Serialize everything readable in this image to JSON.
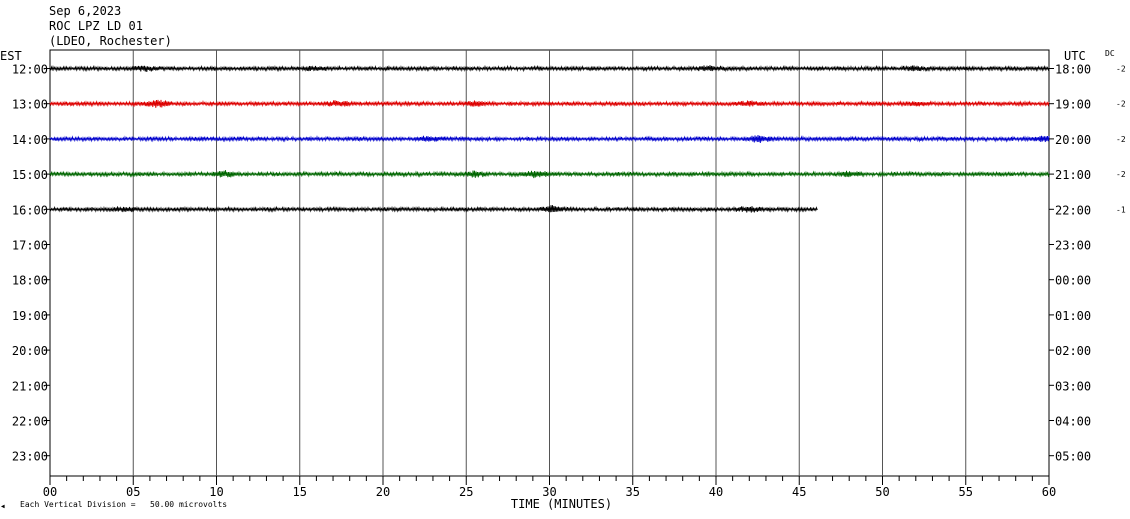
{
  "header": {
    "date": "Sep 6,2023",
    "station": "ROC LPZ LD 01",
    "network": "(LDEO, Rochester)"
  },
  "left_axis_title": "EST",
  "right_axis_title": "UTC",
  "dc_label": "DC",
  "footer": {
    "mark": "◀",
    "scale_note": "Each Vertical Division =   50.00 microvolts"
  },
  "chart_data": {
    "type": "line",
    "title": "ROC LPZ LD 01",
    "xlabel": "TIME (MINUTES)",
    "ylabel": "",
    "x_ticks": [
      "00",
      "05",
      "10",
      "15",
      "20",
      "25",
      "30",
      "35",
      "40",
      "45",
      "50",
      "55",
      "60"
    ],
    "xlim": [
      0,
      60
    ],
    "grid": true,
    "est_hours": [
      "12:00",
      "13:00",
      "14:00",
      "15:00",
      "16:00",
      "17:00",
      "18:00",
      "19:00",
      "20:00",
      "21:00",
      "22:00",
      "23:00"
    ],
    "utc_hours": [
      "18:00",
      "19:00",
      "20:00",
      "21:00",
      "22:00",
      "23:00",
      "00:00",
      "01:00",
      "02:00",
      "03:00",
      "04:00",
      "05:00"
    ],
    "series": [
      {
        "est": "12:00",
        "color": "#000000",
        "end_minute": 60,
        "dc": "-2",
        "bursts": [
          [
            5.8,
            1.6
          ],
          [
            16,
            1.3
          ],
          [
            39.6,
            1.8
          ],
          [
            52,
            1.4
          ]
        ]
      },
      {
        "est": "13:00",
        "color": "#dd0000",
        "end_minute": 60,
        "dc": "-2",
        "bursts": [
          [
            6.4,
            3.0
          ],
          [
            17.3,
            1.7
          ],
          [
            25.6,
            1.9
          ],
          [
            42,
            1.5
          ],
          [
            52,
            1.3
          ]
        ]
      },
      {
        "est": "14:00",
        "color": "#0000cc",
        "end_minute": 60,
        "dc": "-2",
        "bursts": [
          [
            22.8,
            1.6
          ],
          [
            42.6,
            2.4
          ],
          [
            59.6,
            1.6
          ]
        ]
      },
      {
        "est": "15:00",
        "color": "#006600",
        "end_minute": 60,
        "dc": "-2",
        "bursts": [
          [
            10.5,
            2.2
          ],
          [
            25.5,
            2.0
          ],
          [
            29.2,
            2.2
          ],
          [
            48,
            1.6
          ]
        ]
      },
      {
        "est": "16:00",
        "color": "#000000",
        "end_minute": 46.1,
        "dc": "-1",
        "bursts": [
          [
            4.5,
            1.4
          ],
          [
            30.2,
            2.1
          ],
          [
            42,
            1.6
          ]
        ]
      }
    ]
  }
}
